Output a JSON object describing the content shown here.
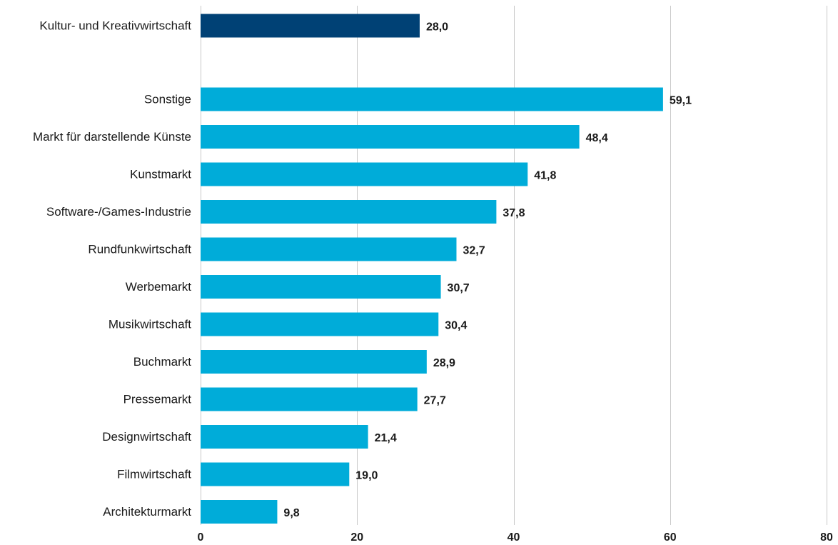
{
  "chart_data": {
    "type": "bar",
    "orientation": "horizontal",
    "categories": [
      "Kultur- und Kreativwirtschaft",
      "Sonstige",
      "Markt für darstellende Künste",
      "Kunstmarkt",
      "Software-/Games-Industrie",
      "Rundfunkwirtschaft",
      "Werbemarkt",
      "Musikwirtschaft",
      "Buchmarkt",
      "Pressemarkt",
      "Designwirtschaft",
      "Filmwirtschaft",
      "Architekturmarkt"
    ],
    "values": [
      28.0,
      59.1,
      48.4,
      41.8,
      37.8,
      32.7,
      30.7,
      30.4,
      28.9,
      27.7,
      21.4,
      19.0,
      9.8
    ],
    "value_labels": [
      "28,0",
      "59,1",
      "48,4",
      "41,8",
      "37,8",
      "32,7",
      "30,7",
      "30,4",
      "28,9",
      "27,7",
      "21,4",
      "19,0",
      "9,8"
    ],
    "highlight_index": 0,
    "xlim": [
      0,
      80
    ],
    "xticks": [
      0,
      20,
      40,
      60,
      80
    ],
    "xtick_labels": [
      "0",
      "20",
      "40",
      "60",
      "80"
    ],
    "grid": "vertical",
    "legend": "none",
    "title": "",
    "xlabel": "",
    "ylabel": "",
    "colors": {
      "highlight": "#004175",
      "bar": "#00acd9",
      "grid": "#c8c8c8",
      "text": "#1a1a1a"
    }
  }
}
